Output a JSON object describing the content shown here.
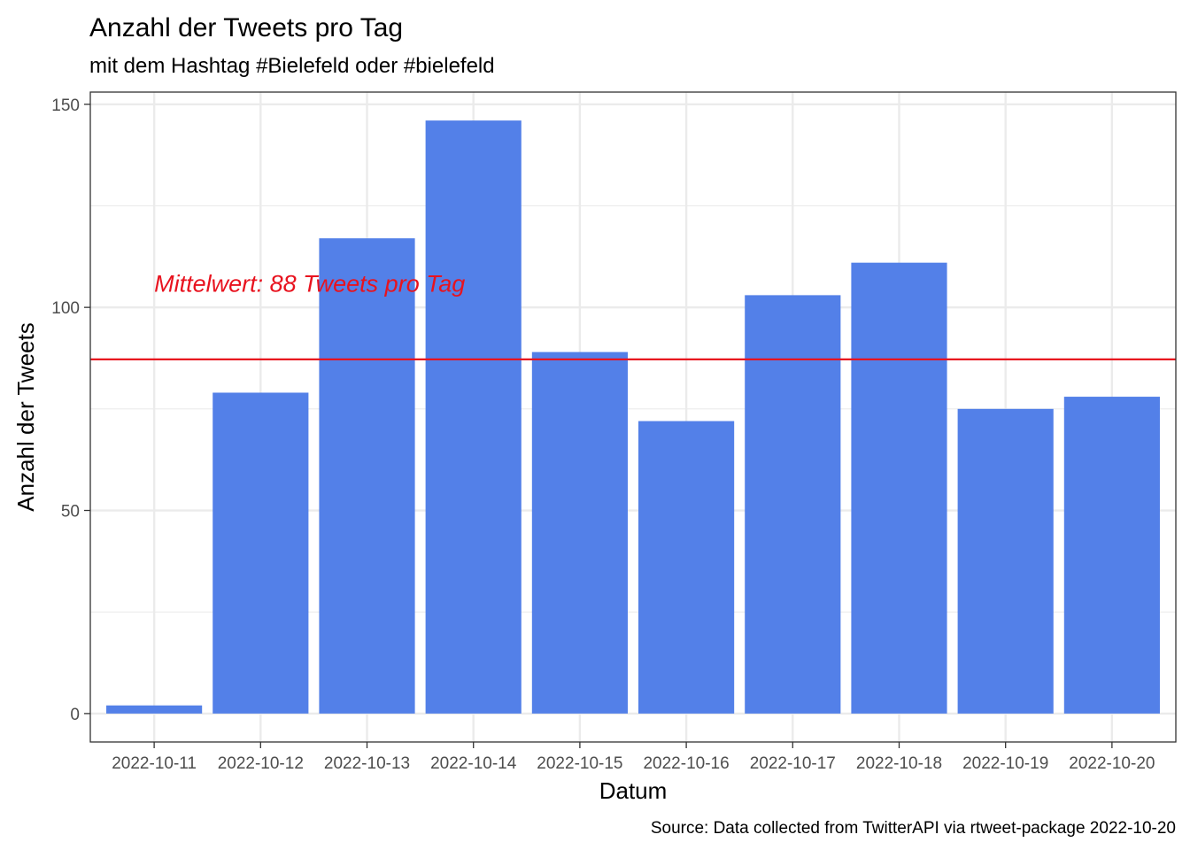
{
  "chart_data": {
    "type": "bar",
    "title": "Anzahl der Tweets pro Tag",
    "subtitle": "mit dem Hashtag #Bielefeld oder #bielefeld",
    "xlabel": "Datum",
    "ylabel": "Anzahl der Tweets",
    "caption": "Source: Data collected from TwitterAPI via rtweet-package  2022-10-20",
    "categories": [
      "2022-10-11",
      "2022-10-12",
      "2022-10-13",
      "2022-10-14",
      "2022-10-15",
      "2022-10-16",
      "2022-10-17",
      "2022-10-18",
      "2022-10-19",
      "2022-10-20"
    ],
    "values": [
      2,
      79,
      117,
      146,
      89,
      72,
      103,
      111,
      75,
      78
    ],
    "ylim": [
      -7,
      153
    ],
    "yticks": [
      0,
      50,
      100,
      150
    ],
    "grid": true,
    "bar_color": "#5380E8",
    "mean_line": {
      "value": 87.2,
      "color": "#E8131F",
      "label": "Mittelwert: 88 Tweets pro Tag",
      "label_y": 106,
      "label_anchor_category": "2022-10-11"
    }
  }
}
